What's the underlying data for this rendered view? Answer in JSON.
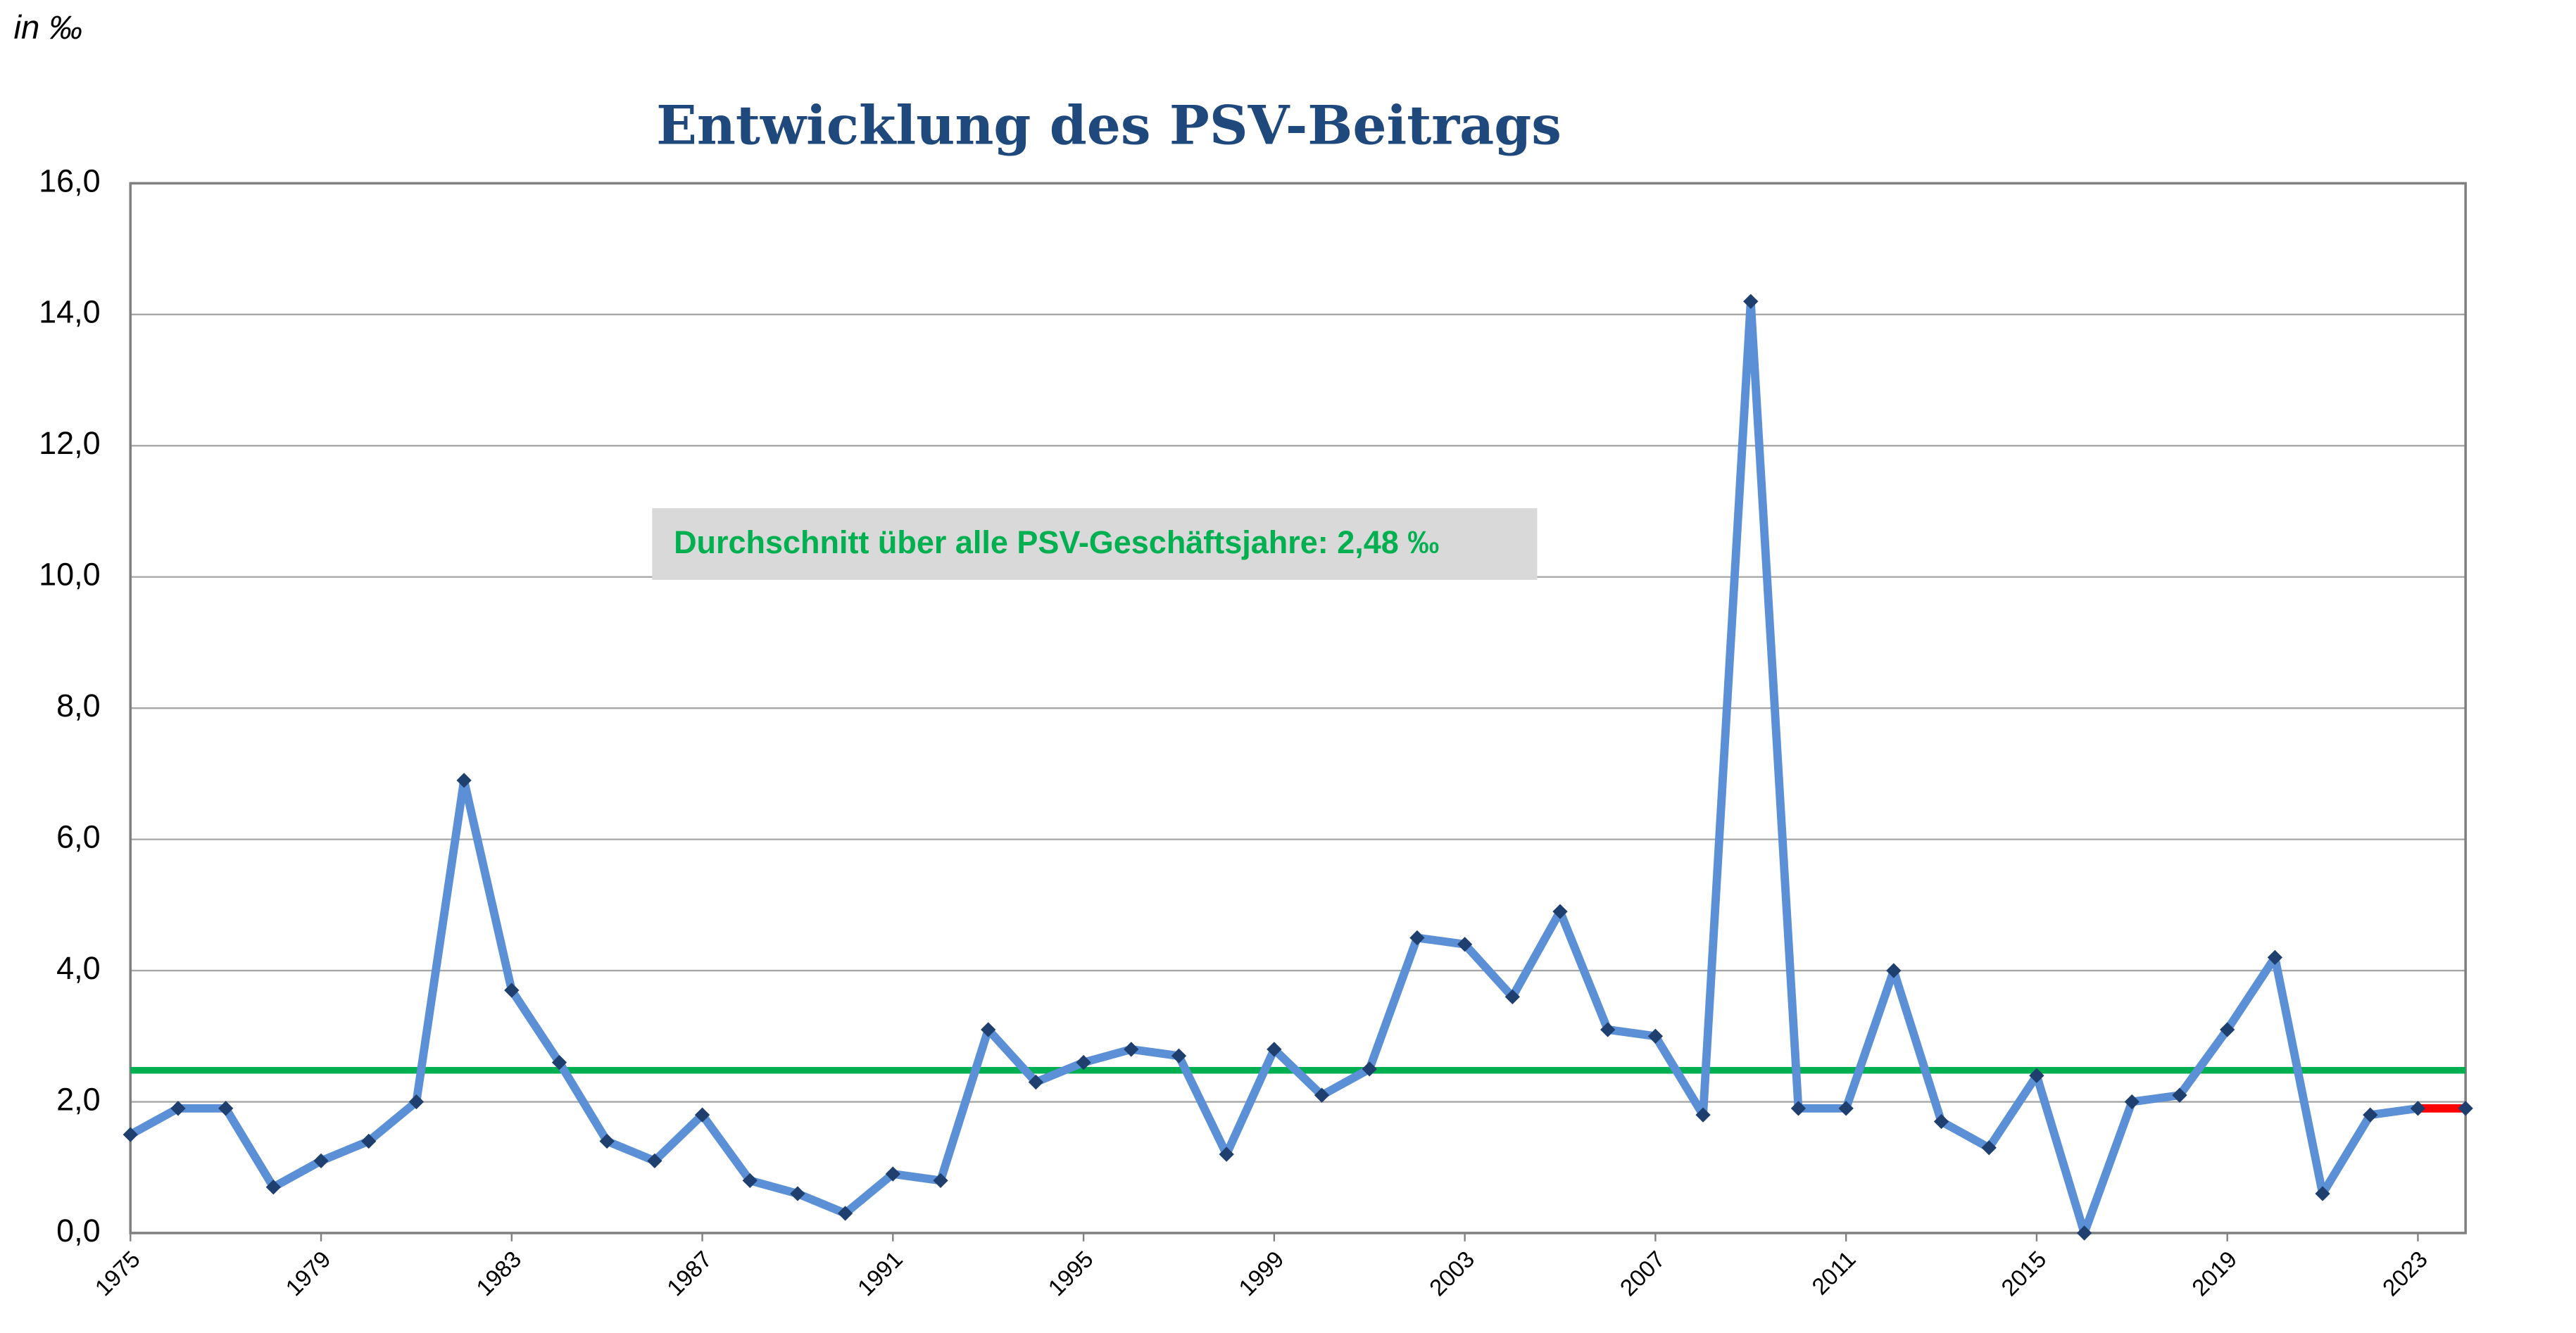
{
  "chart_data": {
    "type": "line",
    "title": "Entwicklung des PSV-Beitrags",
    "y_label": "in ‰",
    "x": [
      1975,
      1976,
      1977,
      1978,
      1979,
      1980,
      1981,
      1982,
      1983,
      1984,
      1985,
      1986,
      1987,
      1988,
      1989,
      1990,
      1991,
      1992,
      1993,
      1994,
      1995,
      1996,
      1997,
      1998,
      1999,
      2000,
      2001,
      2002,
      2003,
      2004,
      2005,
      2006,
      2007,
      2008,
      2009,
      2010,
      2011,
      2012,
      2013,
      2014,
      2015,
      2016,
      2017,
      2018,
      2019,
      2020,
      2021,
      2022,
      2023,
      2024
    ],
    "series": [
      {
        "color": "#5b8fd6",
        "marker_color": "#1f3f6e",
        "last_segment_color": "#ff0000",
        "values": [
          1.5,
          1.9,
          1.9,
          0.7,
          1.1,
          1.4,
          2.0,
          6.9,
          3.7,
          2.6,
          1.4,
          1.1,
          1.8,
          0.8,
          0.6,
          0.3,
          0.9,
          0.8,
          3.1,
          2.3,
          2.6,
          2.8,
          2.7,
          1.2,
          2.8,
          2.1,
          2.5,
          4.5,
          4.4,
          3.6,
          4.9,
          3.1,
          3.0,
          1.8,
          14.2,
          1.9,
          1.9,
          4.0,
          1.7,
          1.3,
          2.4,
          0.0,
          2.0,
          2.1,
          3.1,
          4.2,
          0.6,
          1.8,
          1.9,
          1.9
        ]
      }
    ],
    "average": {
      "value": 2.48,
      "label": "Durchschnitt über alle PSV-Geschäftsjahre: 2,48 ‰",
      "color": "#00b050"
    },
    "xlim": [
      1975,
      2024
    ],
    "xticks": [
      1975,
      1979,
      1983,
      1987,
      1991,
      1995,
      1999,
      2003,
      2007,
      2011,
      2015,
      2019,
      2023
    ],
    "ylim": [
      0,
      16
    ],
    "yticks": [
      {
        "value": 0,
        "label": "0,0"
      },
      {
        "value": 2,
        "label": "2,0"
      },
      {
        "value": 4,
        "label": "4,0"
      },
      {
        "value": 6,
        "label": "6,0"
      },
      {
        "value": 8,
        "label": "8,0"
      },
      {
        "value": 10,
        "label": "10,0"
      },
      {
        "value": 12,
        "label": "12,0"
      },
      {
        "value": 14,
        "label": "14,0"
      },
      {
        "value": 16,
        "label": "16,0"
      }
    ],
    "grid": true
  }
}
